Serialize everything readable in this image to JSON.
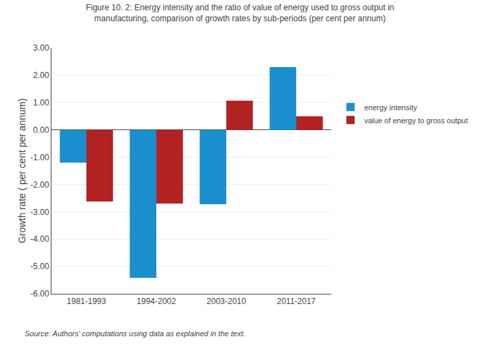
{
  "chart_data": {
    "type": "bar",
    "title": "Figure 10. 2: Energy intensity and the ratio of value of energy used to gross output in\nmanufacturing, comparison of growth rates by sub-periods (per cent per annum)",
    "categories": [
      "1981-1993",
      "1994-2002",
      "2003-2010",
      "2011-2017"
    ],
    "series": [
      {
        "name": "energy intensity",
        "color": "#1B8FCE",
        "values": [
          -1.2,
          -5.42,
          -2.72,
          2.3
        ]
      },
      {
        "name": "value of energy to gross output",
        "color": "#B22222",
        "values": [
          -2.62,
          -2.7,
          1.07,
          0.5
        ]
      }
    ],
    "ylabel": "Growth rate ( per cent per annum)",
    "ylim": [
      -6.0,
      3.0
    ],
    "yticks": [
      {
        "value": -6.0,
        "label": "-6.00"
      },
      {
        "value": -5.0,
        "label": "-5.00"
      },
      {
        "value": -4.0,
        "label": "-4.00"
      },
      {
        "value": -3.0,
        "label": "-3.00"
      },
      {
        "value": -2.0,
        "label": "-2.00"
      },
      {
        "value": -1.0,
        "label": "-1.00"
      },
      {
        "value": 0.0,
        "label": "0.00"
      },
      {
        "value": 1.0,
        "label": "1.00"
      },
      {
        "value": 2.0,
        "label": "2.00"
      },
      {
        "value": 3.0,
        "label": "3.00"
      }
    ],
    "grid": true,
    "legend": "right",
    "annotations": [
      "Source: Authors' computations using data as explained in the text."
    ]
  }
}
